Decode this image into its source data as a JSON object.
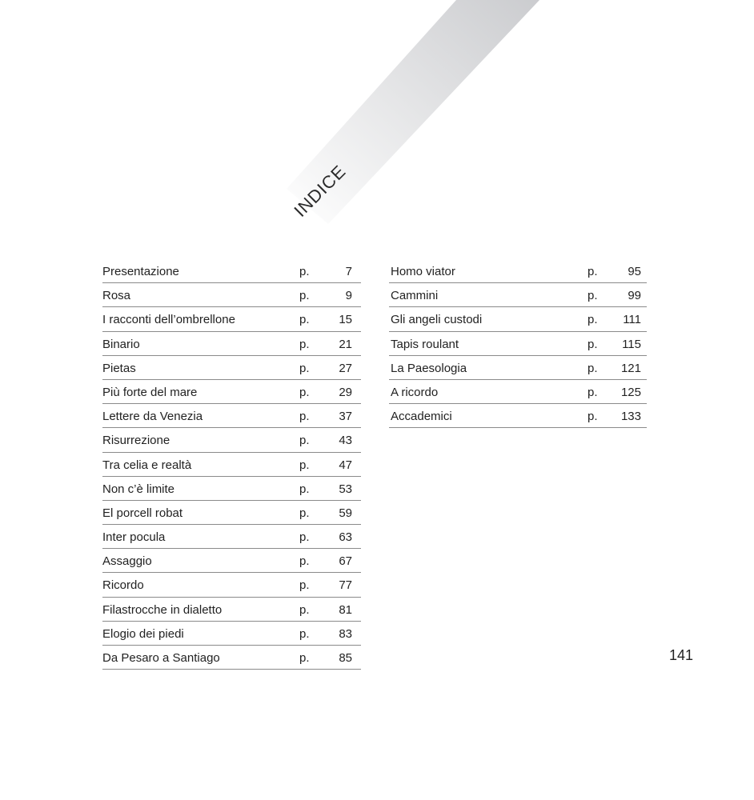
{
  "title": "INDICE",
  "page_number": "141",
  "colors": {
    "band_light": "#ffffff",
    "band_dark": "#cbcccf",
    "rule": "#8a8a8a",
    "text": "#222222"
  },
  "toc_left": [
    {
      "title": "Presentazione",
      "p": "p.",
      "page": "7"
    },
    {
      "title": "Rosa",
      "p": "p.",
      "page": "9"
    },
    {
      "title": "I racconti dell’ombrellone",
      "p": "p.",
      "page": "15"
    },
    {
      "title": "Binario",
      "p": "p.",
      "page": "21"
    },
    {
      "title": "Pietas",
      "p": "p.",
      "page": "27"
    },
    {
      "title": "Più forte del mare",
      "p": "p.",
      "page": "29"
    },
    {
      "title": "Lettere da Venezia",
      "p": "p.",
      "page": "37"
    },
    {
      "title": "Risurrezione",
      "p": "p.",
      "page": "43"
    },
    {
      "title": "Tra celia e realtà",
      "p": "p.",
      "page": "47"
    },
    {
      "title": "Non c’è limite",
      "p": "p.",
      "page": "53"
    },
    {
      "title": "El porcell robat",
      "p": "p.",
      "page": "59"
    },
    {
      "title": "Inter pocula",
      "p": "p.",
      "page": "63"
    },
    {
      "title": "Assaggio",
      "p": "p.",
      "page": "67"
    },
    {
      "title": "Ricordo",
      "p": "p.",
      "page": "77"
    },
    {
      "title": "Filastrocche in dialetto",
      "p": "p.",
      "page": "81"
    },
    {
      "title": "Elogio dei piedi",
      "p": "p.",
      "page": "83"
    },
    {
      "title": "Da Pesaro a Santiago",
      "p": "p.",
      "page": "85"
    }
  ],
  "toc_right": [
    {
      "title": "Homo viator",
      "p": "p.",
      "page": "95"
    },
    {
      "title": "Cammini",
      "p": "p.",
      "page": "99"
    },
    {
      "title": "Gli angeli custodi",
      "p": "p.",
      "page": "111"
    },
    {
      "title": "Tapis roulant",
      "p": "p.",
      "page": "115"
    },
    {
      "title": "La Paesologia",
      "p": "p.",
      "page": "121"
    },
    {
      "title": "A ricordo",
      "p": "p.",
      "page": "125"
    },
    {
      "title": "Accademici",
      "p": "p.",
      "page": "133"
    }
  ]
}
